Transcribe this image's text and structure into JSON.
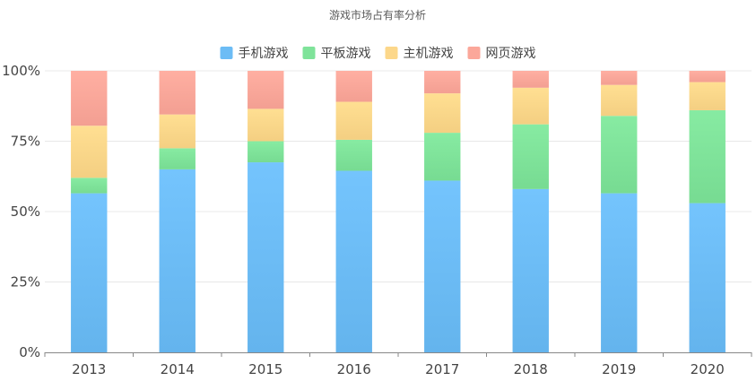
{
  "chart_data": {
    "type": "bar",
    "stacked": true,
    "title": "游戏市场占有率分析",
    "categories": [
      "2013",
      "2014",
      "2015",
      "2016",
      "2017",
      "2018",
      "2019",
      "2020"
    ],
    "series": [
      {
        "name": "手机游戏",
        "color": "#6cbcf5",
        "values": [
          56.5,
          65.0,
          67.5,
          64.5,
          61.0,
          58.0,
          56.5,
          53.0
        ]
      },
      {
        "name": "平板游戏",
        "color": "#7fe39a",
        "values": [
          5.5,
          7.5,
          7.5,
          11.0,
          17.0,
          23.0,
          27.5,
          33.0
        ]
      },
      {
        "name": "主机游戏",
        "color": "#fcd78a",
        "values": [
          18.5,
          12.0,
          11.5,
          13.5,
          14.0,
          13.0,
          11.0,
          10.0
        ]
      },
      {
        "name": "网页游戏",
        "color": "#fba79a",
        "values": [
          19.5,
          15.5,
          13.5,
          11.0,
          8.0,
          6.0,
          5.0,
          4.0
        ]
      }
    ],
    "ylim": [
      0,
      100
    ],
    "yticks": [
      "0%",
      "25%",
      "50%",
      "75%",
      "100%"
    ],
    "ytick_values": [
      0,
      25,
      50,
      75,
      100
    ],
    "xlabel": "",
    "ylabel": "",
    "legend_position": "top-center",
    "grid": true
  }
}
